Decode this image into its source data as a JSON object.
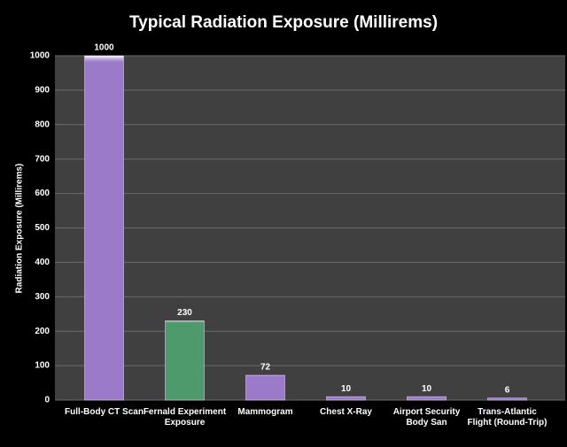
{
  "chart_data": {
    "type": "bar",
    "title": "Typical Radiation Exposure (Millirems)",
    "y_label": "Radiation Exposure (Millirems)",
    "categories": [
      "Full-Body CT Scan",
      "Fernald Experiment Exposure",
      "Mammogram",
      "Chest X-Ray",
      "Airport Security Body San",
      "Trans-Atlantic Flight (Round-Trip)"
    ],
    "values": [
      1000,
      230,
      72,
      10,
      10,
      6
    ],
    "colors": [
      "#9b7bc9",
      "#4e9a6c",
      "#9b7bc9",
      "#9b7bc9",
      "#9b7bc9",
      "#9b7bc9"
    ],
    "ylim": [
      0,
      1000
    ],
    "yticks": [
      0,
      100,
      200,
      300,
      400,
      500,
      600,
      700,
      800,
      900,
      1000
    ],
    "grid": true
  }
}
